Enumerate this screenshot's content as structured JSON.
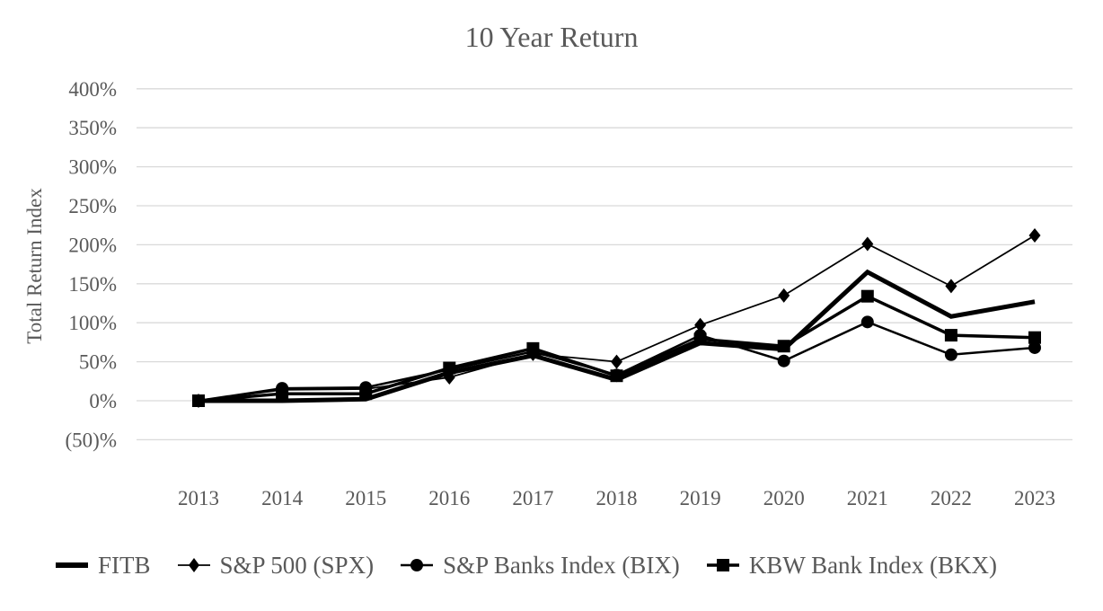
{
  "chart_data": {
    "type": "line",
    "title": "10 Year Return",
    "ylabel": "Total Return Index",
    "x_categories": [
      "2013",
      "2014",
      "2015",
      "2016",
      "2017",
      "2018",
      "2019",
      "2020",
      "2021",
      "2022",
      "2023"
    ],
    "y_ticks": [
      {
        "label": "400%",
        "value": 400
      },
      {
        "label": "350%",
        "value": 350
      },
      {
        "label": "300%",
        "value": 300
      },
      {
        "label": "250%",
        "value": 250
      },
      {
        "label": "200%",
        "value": 200
      },
      {
        "label": "150%",
        "value": 150
      },
      {
        "label": "100%",
        "value": 100
      },
      {
        "label": "50%",
        "value": 50
      },
      {
        "label": "0%",
        "value": 0
      },
      {
        "label": "(50)%",
        "value": -50
      }
    ],
    "ylim": [
      -50,
      400
    ],
    "grid": true,
    "legend_position": "bottom",
    "series": [
      {
        "name": "FITB",
        "marker": "none",
        "line_width": 5,
        "values": [
          0,
          0,
          2,
          36,
          58,
          27,
          74,
          66,
          165,
          108,
          127
        ]
      },
      {
        "name": "S&P 500 (SPX)",
        "marker": "diamond",
        "line_width": 1.75,
        "values": [
          0,
          14,
          15,
          30,
          60,
          50,
          97,
          135,
          201,
          147,
          212
        ]
      },
      {
        "name": "S&P Banks Index (BIX)",
        "marker": "circle",
        "line_width": 2.5,
        "values": [
          0,
          16,
          17,
          40,
          63,
          33,
          84,
          51,
          101,
          59,
          68
        ]
      },
      {
        "name": "KBW Bank Index (BKX)",
        "marker": "square",
        "line_width": 3.5,
        "values": [
          0,
          9,
          9,
          42,
          67,
          32,
          79,
          70,
          134,
          84,
          81
        ]
      }
    ],
    "colors": {
      "series": "#000000",
      "grid": "#d9d9d9",
      "text": "#595959"
    }
  }
}
